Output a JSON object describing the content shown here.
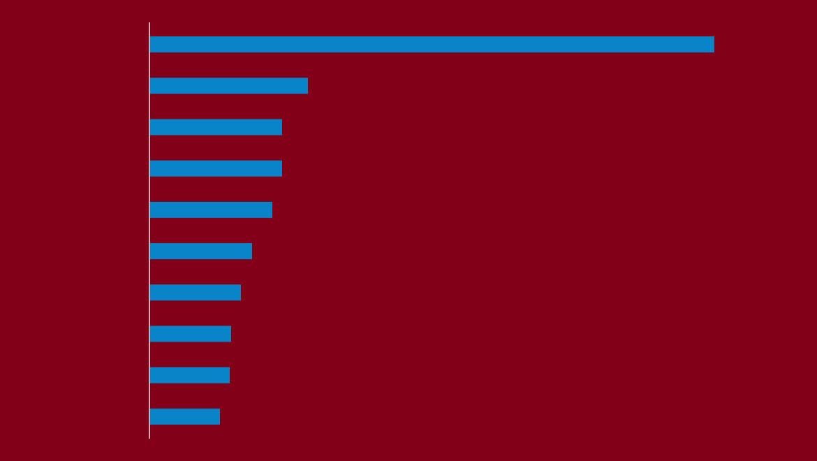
{
  "chart_data": {
    "type": "bar",
    "orientation": "horizontal",
    "categories": [
      null,
      null,
      null,
      null,
      null,
      null,
      null,
      null,
      null,
      null
    ],
    "values": [
      808,
      226,
      189,
      189,
      175,
      146,
      130,
      116,
      114,
      100
    ],
    "color": "#0a84c8",
    "xlim": [
      0,
      955
    ]
  }
}
